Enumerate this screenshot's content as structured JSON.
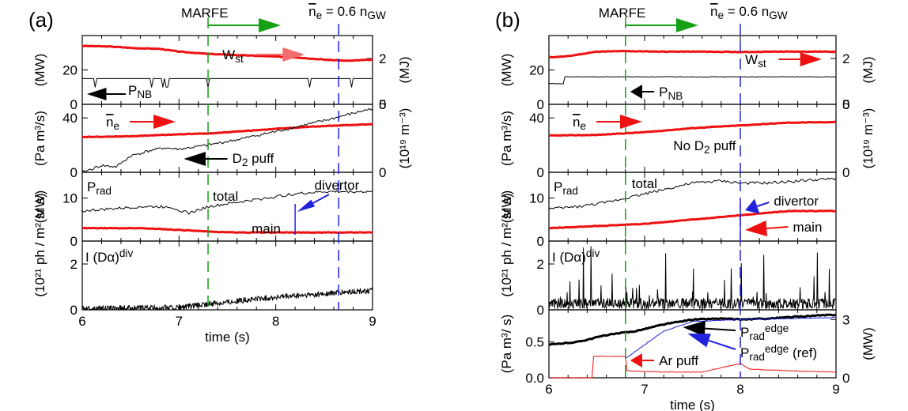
{
  "figure": {
    "panel_a_label": "(a)",
    "panel_b_label": "(b)",
    "marfe_label": "MARFE",
    "ne_label": "n",
    "ne_label_sub": "e",
    "ne_eq": " = 0.6 n",
    "ne_eq_sub": "GW",
    "colors": {
      "red": "#ee1111",
      "black": "#000000",
      "blue": "#2222dd",
      "green": "#16a016",
      "salmon": "#f26d6d"
    }
  },
  "chart_data": [
    {
      "panel": "a",
      "type": "line",
      "xlabel": "time (s)",
      "xlim": [
        6,
        9
      ],
      "xticks": [
        "6",
        "7",
        "8",
        "9"
      ],
      "marfe_time": 7.3,
      "ne_gw_time": 8.65,
      "subplots": [
        {
          "id": "a1",
          "ylabel": "(MW)",
          "ylabel_right": "(MJ)",
          "yticks": [
            "0",
            "20"
          ],
          "yticks_right": [
            "0",
            "2"
          ],
          "ylim": [
            0,
            40
          ],
          "ylim_right": [
            0,
            3.0
          ],
          "labels": {
            "wst": "W",
            "wst_sub": "st",
            "pnb": "P",
            "pnb_sub": "NB"
          },
          "series": [
            {
              "name": "Wst",
              "axis": "right",
              "color": "red",
              "x": [
                6.0,
                6.3,
                6.55,
                6.8,
                7.0,
                7.3,
                7.6,
                7.9,
                8.2,
                8.5,
                8.75,
                9.0
              ],
              "y": [
                2.55,
                2.52,
                2.45,
                2.42,
                2.3,
                2.2,
                2.15,
                2.1,
                2.05,
                1.95,
                1.9,
                1.95
              ]
            },
            {
              "name": "PNB",
              "axis": "left",
              "color": "black",
              "x": [
                6.0,
                9.0
              ],
              "y": [
                15,
                15
              ]
            }
          ]
        },
        {
          "id": "a2",
          "ylabel": "(Pa m³/s)",
          "ylabel_right": "(10¹⁹ m⁻³)",
          "yticks": [
            "0",
            "40"
          ],
          "yticks_right": [
            "0",
            "5"
          ],
          "ylim": [
            0,
            50
          ],
          "ylim_right": [
            0,
            5
          ],
          "labels": {
            "ne": "n",
            "ne_sub": "e",
            "d2": "D",
            "d2_sub": "2",
            "d2_rest": " puff"
          },
          "series": [
            {
              "name": "ne",
              "axis": "right",
              "color": "red",
              "x": [
                6.0,
                6.5,
                7.0,
                7.3,
                7.6,
                8.0,
                8.5,
                9.0
              ],
              "y": [
                2.6,
                2.65,
                2.8,
                2.85,
                3.0,
                3.2,
                3.4,
                3.55
              ]
            },
            {
              "name": "D2 puff",
              "axis": "left",
              "color": "black",
              "x": [
                6.0,
                6.2,
                6.35,
                6.5,
                6.7,
                6.85,
                7.0,
                7.3,
                7.6,
                8.0,
                8.5,
                9.0
              ],
              "y": [
                0,
                5,
                4,
                12,
                16,
                18,
                17,
                20,
                24,
                30,
                38,
                47
              ]
            }
          ]
        },
        {
          "id": "a3",
          "ylabel": "(MW)",
          "yticks": [
            "0",
            "10"
          ],
          "ylim": [
            0,
            16
          ],
          "labels": {
            "prad": "P",
            "prad_sub": "rad",
            "total": "total",
            "main": "main",
            "divertor": "divertor"
          },
          "series": [
            {
              "name": "total",
              "color": "black",
              "x": [
                6.0,
                6.3,
                6.6,
                6.9,
                7.1,
                7.3,
                7.6,
                7.9,
                8.2,
                8.5,
                8.8,
                9.0
              ],
              "y": [
                7,
                7.5,
                8,
                8,
                6.5,
                8,
                9,
                10,
                11,
                11.5,
                11.5,
                11.5
              ]
            },
            {
              "name": "main",
              "color": "red",
              "x": [
                6.0,
                6.6,
                7.0,
                7.3,
                7.6,
                8.0,
                9.0
              ],
              "y": [
                3,
                3,
                2.6,
                2.2,
                2,
                2,
                2
              ]
            }
          ]
        },
        {
          "id": "a4",
          "ylabel": "(10²¹ ph / m² sr s)",
          "yticks": [
            "0",
            "2"
          ],
          "ylim": [
            0,
            3
          ],
          "labels": {
            "ida": "I (Dα)",
            "ida_sup": "div"
          },
          "series": [
            {
              "name": "I(Dalpha)div",
              "color": "black",
              "x": [
                6.0,
                7.0,
                7.5,
                8.0,
                8.5,
                9.0
              ],
              "y": [
                0.05,
                0.1,
                0.35,
                0.55,
                0.7,
                0.85
              ]
            }
          ]
        }
      ]
    },
    {
      "panel": "b",
      "type": "line",
      "xlabel": "time (s)",
      "xlim": [
        6,
        9
      ],
      "xticks": [
        "6",
        "7",
        "8",
        "9"
      ],
      "marfe_time": 6.8,
      "ne_gw_time": 8.0,
      "subplots": [
        {
          "id": "b1",
          "ylabel": "(MW)",
          "ylabel_right": "(MJ)",
          "yticks": [
            "0",
            "20"
          ],
          "yticks_right": [
            "0",
            "2"
          ],
          "ylim": [
            0,
            40
          ],
          "ylim_right": [
            0,
            3.0
          ],
          "labels": {
            "wst": "W",
            "wst_sub": "st",
            "pnb": "P",
            "pnb_sub": "NB"
          },
          "series": [
            {
              "name": "Wst",
              "axis": "right",
              "color": "red",
              "x": [
                6.0,
                6.2,
                6.5,
                6.8,
                7.2,
                7.6,
                8.0,
                8.4,
                8.8,
                9.0
              ],
              "y": [
                2.05,
                2.1,
                2.3,
                2.32,
                2.3,
                2.3,
                2.28,
                2.3,
                2.3,
                2.3
              ]
            },
            {
              "name": "PNB",
              "axis": "left",
              "color": "black",
              "x": [
                6.0,
                6.15,
                6.15,
                9.0
              ],
              "y": [
                12,
                12,
                16,
                16
              ]
            }
          ]
        },
        {
          "id": "b2",
          "ylabel": "(Pa m³/s)",
          "ylabel_right": "(10¹⁹ m⁻³)",
          "yticks": [
            "0",
            "40"
          ],
          "yticks_right": [
            "0",
            "5"
          ],
          "ylim": [
            0,
            50
          ],
          "ylim_right": [
            0,
            5
          ],
          "labels": {
            "ne": "n",
            "ne_sub": "e",
            "nod2": "No D",
            "nod2_sub": "2",
            "nod2_rest": " puff"
          },
          "series": [
            {
              "name": "ne",
              "axis": "right",
              "color": "red",
              "x": [
                6.0,
                6.5,
                7.0,
                7.5,
                8.0,
                8.5,
                9.0
              ],
              "y": [
                2.7,
                2.75,
                2.95,
                3.25,
                3.45,
                3.65,
                3.7
              ]
            }
          ]
        },
        {
          "id": "b3",
          "ylabel": "(MW)",
          "yticks": [
            "0",
            "10"
          ],
          "ylim": [
            0,
            16
          ],
          "labels": {
            "prad": "P",
            "prad_sub": "rad",
            "total": "total",
            "main": "main",
            "divertor": "divertor"
          },
          "series": [
            {
              "name": "total",
              "color": "black",
              "x": [
                6.0,
                6.3,
                6.6,
                6.9,
                7.2,
                7.5,
                7.8,
                8.0,
                8.3,
                8.6,
                9.0
              ],
              "y": [
                7.5,
                8,
                9,
                10.5,
                12,
                13.5,
                14,
                13.5,
                13.5,
                14,
                14.5
              ]
            },
            {
              "name": "main",
              "color": "red",
              "x": [
                6.0,
                6.5,
                7.0,
                7.5,
                8.0,
                8.5,
                9.0
              ],
              "y": [
                3,
                3.5,
                4,
                5,
                6,
                7,
                7
              ]
            }
          ]
        },
        {
          "id": "b4",
          "ylabel": "(10²¹ ph / m² sr s)",
          "yticks": [
            "0",
            "2"
          ],
          "ylim": [
            0,
            3
          ],
          "labels": {
            "ida": "I (Dα)",
            "ida_sup": "div"
          },
          "series": [
            {
              "name": "I(Dalpha)div",
              "color": "black",
              "x": [
                6.0,
                9.0
              ],
              "y": [
                0.3,
                0.3
              ]
            }
          ]
        },
        {
          "id": "b5",
          "ylabel": "(Pa m³/ s)",
          "ylabel_right": "(MW)",
          "yticks": [
            "0.0",
            "0.5"
          ],
          "yticks_right": [
            "0",
            "3"
          ],
          "ylim": [
            0,
            0.95
          ],
          "ylim_right": [
            0,
            3.5
          ],
          "labels": {
            "edge": "P",
            "edge_sub": "rad",
            "edge_sup": "edge",
            "ref": "P",
            "ref_sub": "rad",
            "ref_sup": "edge",
            "ref_rest": " (ref)",
            "ar": "Ar puff"
          },
          "series": [
            {
              "name": "Prad edge",
              "axis": "right",
              "color": "black",
              "x": [
                6.0,
                6.3,
                6.6,
                6.9,
                7.2,
                7.5,
                7.8,
                8.0,
                8.3,
                8.6,
                9.0
              ],
              "y": [
                1.7,
                1.85,
                2.2,
                2.4,
                2.75,
                3.0,
                3.05,
                3.0,
                3.05,
                3.15,
                3.25
              ]
            },
            {
              "name": "Prad edge (ref)",
              "axis": "right",
              "color": "blue",
              "x": [
                6.8,
                7.2,
                7.5,
                8.0,
                9.0
              ],
              "y": [
                1.0,
                2.4,
                2.9,
                3.0,
                3.1
              ]
            },
            {
              "name": "Ar puff",
              "axis": "left",
              "color": "red",
              "x": [
                6.0,
                6.45,
                6.45,
                6.8,
                6.8,
                7.2,
                7.6,
                8.0,
                8.1,
                8.5,
                9.0
              ],
              "y": [
                0,
                0,
                0.3,
                0.3,
                0.1,
                0.08,
                0.08,
                0.2,
                0.12,
                0.1,
                0.08
              ]
            }
          ]
        }
      ]
    }
  ]
}
